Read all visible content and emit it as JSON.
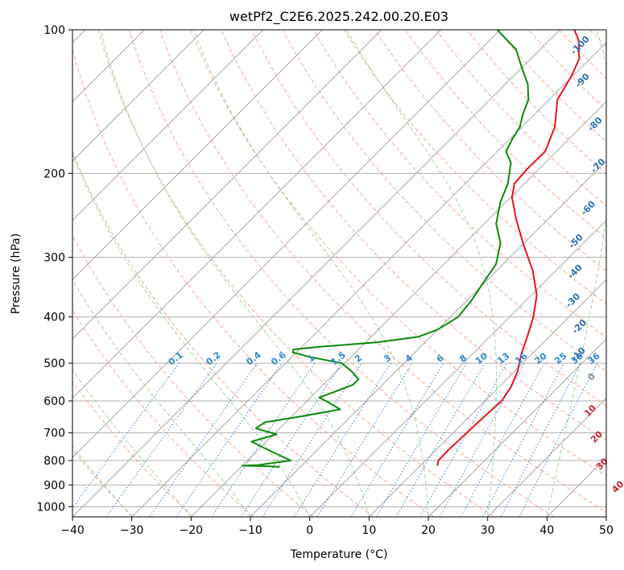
{
  "chart_data": {
    "type": "line",
    "title": "wetPf2_C2E6.2025.242.00.20.E03",
    "xlabel": "Temperature (°C)",
    "ylabel": "Pressure (hPa)",
    "xlim": [
      -40,
      50
    ],
    "ylim": [
      1050,
      100
    ],
    "y_scale": "log",
    "grid": true,
    "x_ticks": [
      -40,
      -30,
      -20,
      -10,
      0,
      10,
      20,
      30,
      40,
      50
    ],
    "y_ticks": [
      100,
      200,
      300,
      400,
      500,
      600,
      700,
      800,
      900,
      1000
    ],
    "series": [
      {
        "role": "temperature",
        "color": "#e8141c",
        "points": [
          {
            "p": 820,
            "t": 12.9
          },
          {
            "p": 800,
            "t": 12.2
          },
          {
            "p": 760,
            "t": 12.1
          },
          {
            "p": 700,
            "t": 12.3
          },
          {
            "p": 650,
            "t": 12.5
          },
          {
            "p": 600,
            "t": 12.8
          },
          {
            "p": 560,
            "t": 12.0
          },
          {
            "p": 520,
            "t": 10.5
          },
          {
            "p": 480,
            "t": 8.3
          },
          {
            "p": 440,
            "t": 6.3
          },
          {
            "p": 400,
            "t": 4.0
          },
          {
            "p": 360,
            "t": 0.9
          },
          {
            "p": 320,
            "t": -3.9
          },
          {
            "p": 280,
            "t": -10.2
          },
          {
            "p": 250,
            "t": -15.3
          },
          {
            "p": 225,
            "t": -19.7
          },
          {
            "p": 210,
            "t": -21.7
          },
          {
            "p": 195,
            "t": -22.0
          },
          {
            "p": 180,
            "t": -21.9
          },
          {
            "p": 160,
            "t": -24.4
          },
          {
            "p": 140,
            "t": -28.6
          },
          {
            "p": 125,
            "t": -30.2
          },
          {
            "p": 115,
            "t": -31.8
          },
          {
            "p": 105,
            "t": -35.1
          },
          {
            "p": 100,
            "t": -37.5
          }
        ]
      },
      {
        "role": "dewpoint",
        "color": "#0a8a0a",
        "points": [
          {
            "p": 825,
            "t": -13.5
          },
          {
            "p": 822,
            "t": -16.0
          },
          {
            "p": 820,
            "t": -20.0
          },
          {
            "p": 818,
            "t": -17.5
          },
          {
            "p": 812,
            "t": -16.0
          },
          {
            "p": 800,
            "t": -12.7
          },
          {
            "p": 780,
            "t": -15.5
          },
          {
            "p": 755,
            "t": -19.0
          },
          {
            "p": 730,
            "t": -22.5
          },
          {
            "p": 705,
            "t": -19.5
          },
          {
            "p": 685,
            "t": -24.0
          },
          {
            "p": 665,
            "t": -23.5
          },
          {
            "p": 645,
            "t": -18.0
          },
          {
            "p": 625,
            "t": -13.0
          },
          {
            "p": 605,
            "t": -16.0
          },
          {
            "p": 590,
            "t": -18.5
          },
          {
            "p": 575,
            "t": -17.0
          },
          {
            "p": 555,
            "t": -15.0
          },
          {
            "p": 540,
            "t": -15.0
          },
          {
            "p": 520,
            "t": -17.5
          },
          {
            "p": 500,
            "t": -20.5
          },
          {
            "p": 485,
            "t": -27.0
          },
          {
            "p": 475,
            "t": -30.5
          },
          {
            "p": 468,
            "t": -31.0
          },
          {
            "p": 462,
            "t": -27.0
          },
          {
            "p": 452,
            "t": -18.0
          },
          {
            "p": 440,
            "t": -12.0
          },
          {
            "p": 425,
            "t": -10.0
          },
          {
            "p": 400,
            "t": -8.7
          },
          {
            "p": 370,
            "t": -9.2
          },
          {
            "p": 340,
            "t": -10.2
          },
          {
            "p": 310,
            "t": -11.2
          },
          {
            "p": 280,
            "t": -14.0
          },
          {
            "p": 255,
            "t": -18.0
          },
          {
            "p": 230,
            "t": -20.9
          },
          {
            "p": 210,
            "t": -22.8
          },
          {
            "p": 190,
            "t": -25.8
          },
          {
            "p": 180,
            "t": -28.5
          },
          {
            "p": 170,
            "t": -29.5
          },
          {
            "p": 160,
            "t": -30.3
          },
          {
            "p": 150,
            "t": -32.0
          },
          {
            "p": 140,
            "t": -33.5
          },
          {
            "p": 130,
            "t": -36.2
          },
          {
            "p": 120,
            "t": -40.0
          },
          {
            "p": 110,
            "t": -44.0
          },
          {
            "p": 100,
            "t": -50.5
          }
        ]
      }
    ],
    "isotherms": {
      "start": -130,
      "stop": 50,
      "step": 10,
      "color": "#a8a8a8"
    },
    "dry_adiabats": {
      "theta_start": 240,
      "theta_stop": 470,
      "step": 10,
      "color": "#f7a891"
    },
    "moist_adiabats": {
      "t_start": -50,
      "t_stop": 40,
      "step": 10,
      "color": "#a6d3a0"
    },
    "mixing_ratio_lines": {
      "color": "#2f86d6",
      "values": [
        0.1,
        0.2,
        0.4,
        0.6,
        1,
        1.5,
        2,
        3,
        4,
        6,
        8,
        10,
        13,
        16,
        20,
        25,
        30,
        36
      ],
      "labels": [
        "0.1",
        "0.2",
        "0.4",
        "0.6",
        "1",
        "1.5",
        "2",
        "3",
        "4",
        "6",
        "8",
        "10",
        "13",
        "16",
        "20",
        "25",
        "30",
        "36"
      ]
    },
    "contour_labels": {
      "wetbulb_blue": {
        "color": "#2a6fb3",
        "labels": [
          "-100",
          "-90",
          "-80",
          "-70",
          "-60",
          "-50",
          "-40",
          "-30",
          "-20",
          "-10"
        ],
        "points": [
          {
            "t": -33.8,
            "p": 108
          },
          {
            "t": -27.5,
            "p": 128
          },
          {
            "t": -18.0,
            "p": 158
          },
          {
            "t": -10.5,
            "p": 193
          },
          {
            "t": -5.0,
            "p": 237
          },
          {
            "t": -1.5,
            "p": 278
          },
          {
            "t": 3.5,
            "p": 322
          },
          {
            "t": 8.0,
            "p": 370
          },
          {
            "t": 13.5,
            "p": 420
          },
          {
            "t": 18.0,
            "p": 480
          }
        ]
      },
      "red": {
        "color": "#c8242c",
        "labels": [
          "0",
          "10",
          "20",
          "30",
          "40"
        ],
        "points": [
          {
            "t": 24.0,
            "p": 535
          },
          {
            "t": 29.5,
            "p": 630
          },
          {
            "t": 35.0,
            "p": 715
          },
          {
            "t": 40.5,
            "p": 815
          },
          {
            "t": 47.0,
            "p": 910
          }
        ],
        "colors": [
          "#8a8a8a",
          "#c8242c",
          "#c8242c",
          "#c8242c",
          "#c8242c"
        ]
      }
    }
  }
}
